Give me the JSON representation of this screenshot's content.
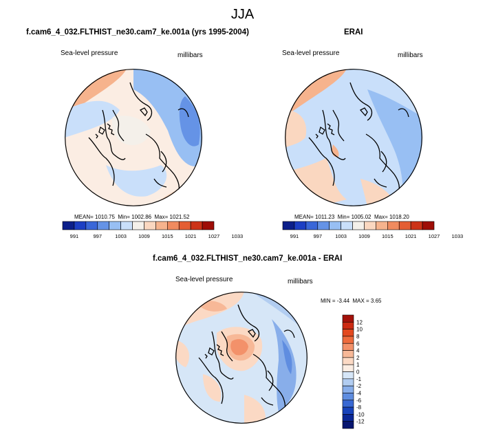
{
  "figure": {
    "title": "JJA"
  },
  "colorbar_levels": [
    "991",
    "997",
    "1003",
    "1009",
    "1015",
    "1021",
    "1027",
    "1033"
  ],
  "colorbar_colors": [
    "#0c1f8a",
    "#1d3fc4",
    "#3a67d8",
    "#6593e6",
    "#98bff3",
    "#c9dffa",
    "#f4f0ea",
    "#fad7c0",
    "#f6b38d",
    "#f08b5f",
    "#e45e34",
    "#cc3317",
    "#9e0d06"
  ],
  "diff_levels": [
    "12",
    "10",
    "8",
    "6",
    "4",
    "2",
    "1",
    "0",
    "-1",
    "-2",
    "-4",
    "-6",
    "-8",
    "-10",
    "-12"
  ],
  "diff_colors": [
    "#a3110a",
    "#cc2a12",
    "#e3491f",
    "#ee6b3d",
    "#f3916a",
    "#f7b897",
    "#fbd9c4",
    "#fbede3",
    "#d6e6f7",
    "#b2cdf1",
    "#88aeea",
    "#5f8de0",
    "#3868d3",
    "#1743bb",
    "#0a2796",
    "#081670"
  ],
  "panels": {
    "model": {
      "title": "f.cam6_4_032.FLTHIST_ne30.cam7_ke.001a (yrs 1995-2004)",
      "variable": "Sea-level pressure",
      "units": "millibars",
      "mean": "MEAN= 1010.75",
      "min": "Min= 1002.86",
      "max": "Max= 1021.52"
    },
    "obs": {
      "title": "ERAI",
      "variable": "Sea-level pressure",
      "units": "millibars",
      "mean": "MEAN= 1011.23",
      "min": "Min= 1005.02",
      "max": "Max= 1018.20"
    },
    "diff": {
      "title": "f.cam6_4_032.FLTHIST_ne30.cam7_ke.001a - ERAI",
      "variable": "Sea-level pressure",
      "units": "millibars",
      "min": "MIN =  -3.44",
      "max": "MAX =   3.65"
    }
  }
}
